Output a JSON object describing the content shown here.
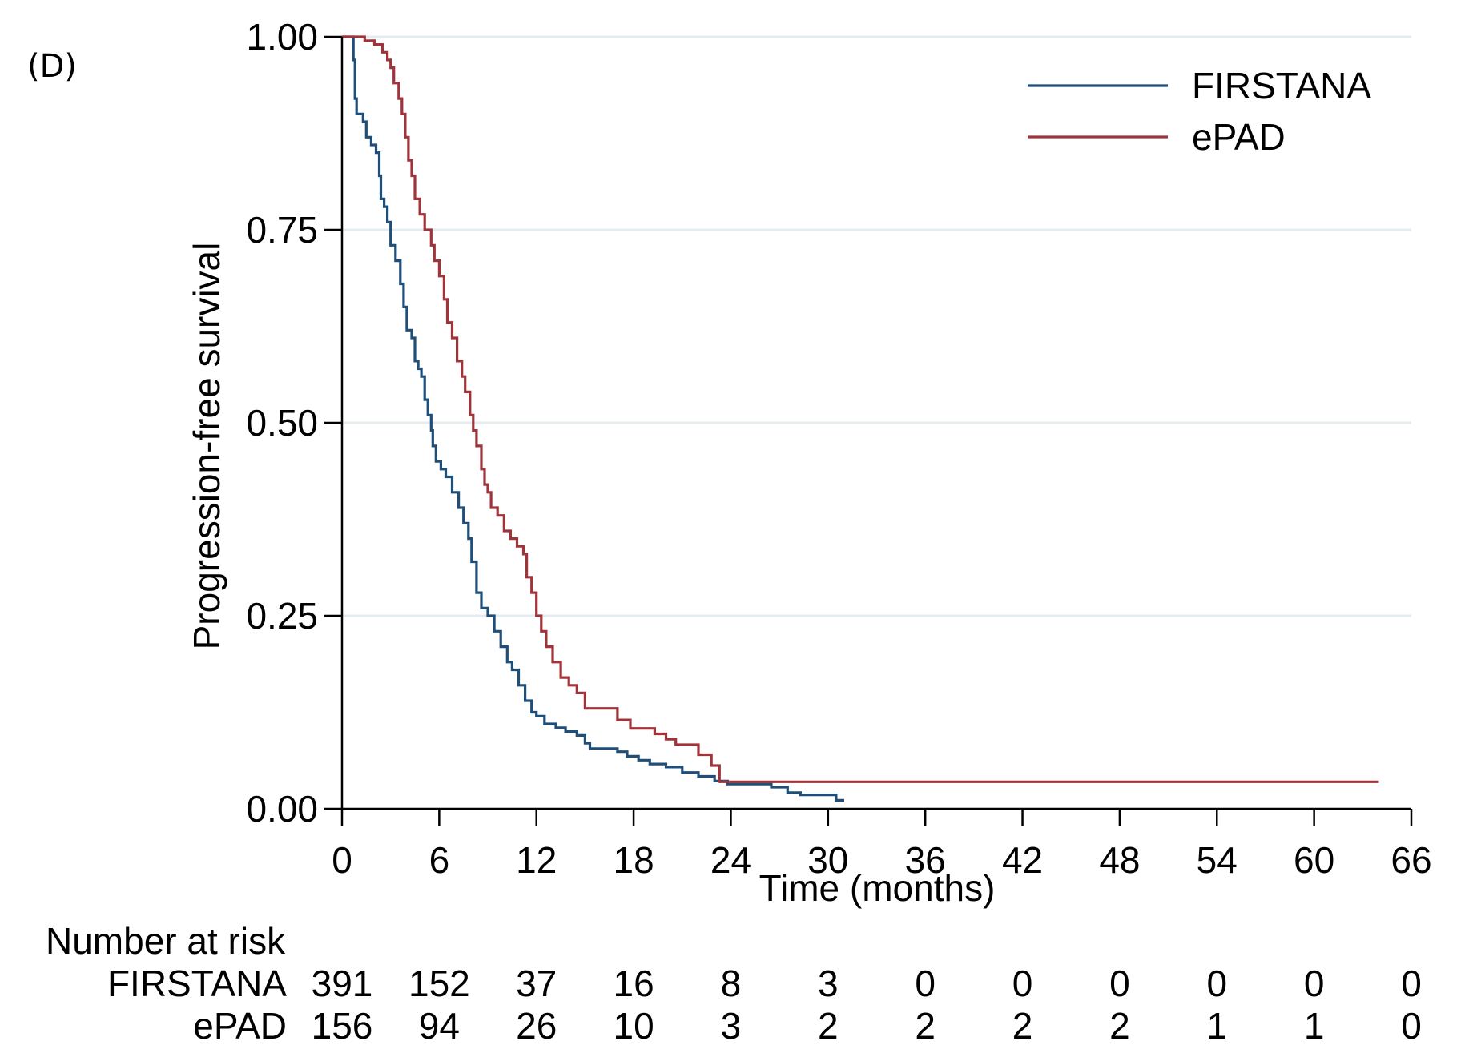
{
  "panel_label": "(D)",
  "chart_data": {
    "type": "line",
    "xlabel": "Time (months)",
    "ylabel": "Progression-free survival",
    "xlim": [
      0,
      66
    ],
    "ylim": [
      0,
      1
    ],
    "xticks": [
      0,
      6,
      12,
      18,
      24,
      30,
      36,
      42,
      48,
      54,
      60,
      66
    ],
    "yticks": [
      0.0,
      0.25,
      0.5,
      0.75,
      1.0
    ],
    "ytick_labels": [
      "0.00",
      "0.25",
      "0.50",
      "0.75",
      "1.00"
    ],
    "grid": "horizontal",
    "legend_position": "top-right",
    "series": [
      {
        "name": "FIRSTANA",
        "color": "#1f4e79",
        "step_points": [
          [
            0,
            1.0
          ],
          [
            0.6,
            1.0
          ],
          [
            0.7,
            0.97
          ],
          [
            0.8,
            0.92
          ],
          [
            0.9,
            0.9
          ],
          [
            1.3,
            0.89
          ],
          [
            1.5,
            0.87
          ],
          [
            1.8,
            0.86
          ],
          [
            2.1,
            0.85
          ],
          [
            2.3,
            0.82
          ],
          [
            2.4,
            0.79
          ],
          [
            2.6,
            0.78
          ],
          [
            2.8,
            0.76
          ],
          [
            3.0,
            0.73
          ],
          [
            3.3,
            0.71
          ],
          [
            3.6,
            0.68
          ],
          [
            3.8,
            0.65
          ],
          [
            4.0,
            0.62
          ],
          [
            4.3,
            0.61
          ],
          [
            4.5,
            0.58
          ],
          [
            4.7,
            0.57
          ],
          [
            4.9,
            0.56
          ],
          [
            5.1,
            0.53
          ],
          [
            5.3,
            0.51
          ],
          [
            5.5,
            0.49
          ],
          [
            5.6,
            0.47
          ],
          [
            5.8,
            0.45
          ],
          [
            6.1,
            0.44
          ],
          [
            6.4,
            0.43
          ],
          [
            6.8,
            0.41
          ],
          [
            7.2,
            0.39
          ],
          [
            7.5,
            0.37
          ],
          [
            7.8,
            0.35
          ],
          [
            8.0,
            0.32
          ],
          [
            8.3,
            0.28
          ],
          [
            8.6,
            0.26
          ],
          [
            9.0,
            0.25
          ],
          [
            9.4,
            0.23
          ],
          [
            9.8,
            0.21
          ],
          [
            10.2,
            0.19
          ],
          [
            10.5,
            0.18
          ],
          [
            10.9,
            0.16
          ],
          [
            11.3,
            0.14
          ],
          [
            11.7,
            0.125
          ],
          [
            12.0,
            0.12
          ],
          [
            12.5,
            0.11
          ],
          [
            13.2,
            0.105
          ],
          [
            13.8,
            0.1
          ],
          [
            14.5,
            0.095
          ],
          [
            15.0,
            0.085
          ],
          [
            15.3,
            0.078
          ],
          [
            17.0,
            0.074
          ],
          [
            17.6,
            0.068
          ],
          [
            18.3,
            0.063
          ],
          [
            19.0,
            0.058
          ],
          [
            20.0,
            0.054
          ],
          [
            21.0,
            0.047
          ],
          [
            22.0,
            0.042
          ],
          [
            23.0,
            0.036
          ],
          [
            23.8,
            0.032
          ],
          [
            26.5,
            0.028
          ],
          [
            27.5,
            0.021
          ],
          [
            28.3,
            0.018
          ],
          [
            30.5,
            0.011
          ],
          [
            31.0,
            0.011
          ]
        ]
      },
      {
        "name": "ePAD",
        "color": "#a0343b",
        "step_points": [
          [
            0,
            1.0
          ],
          [
            1.1,
            1.0
          ],
          [
            1.4,
            0.995
          ],
          [
            2.0,
            0.99
          ],
          [
            2.5,
            0.98
          ],
          [
            2.8,
            0.97
          ],
          [
            3.0,
            0.96
          ],
          [
            3.2,
            0.94
          ],
          [
            3.5,
            0.92
          ],
          [
            3.7,
            0.9
          ],
          [
            3.9,
            0.87
          ],
          [
            4.1,
            0.84
          ],
          [
            4.3,
            0.82
          ],
          [
            4.5,
            0.79
          ],
          [
            4.8,
            0.77
          ],
          [
            5.1,
            0.75
          ],
          [
            5.5,
            0.73
          ],
          [
            5.7,
            0.71
          ],
          [
            6.0,
            0.69
          ],
          [
            6.3,
            0.66
          ],
          [
            6.5,
            0.63
          ],
          [
            6.8,
            0.61
          ],
          [
            7.1,
            0.58
          ],
          [
            7.4,
            0.56
          ],
          [
            7.6,
            0.54
          ],
          [
            7.9,
            0.51
          ],
          [
            8.1,
            0.49
          ],
          [
            8.3,
            0.47
          ],
          [
            8.6,
            0.44
          ],
          [
            8.8,
            0.42
          ],
          [
            9.0,
            0.41
          ],
          [
            9.2,
            0.39
          ],
          [
            9.6,
            0.38
          ],
          [
            10.0,
            0.36
          ],
          [
            10.4,
            0.35
          ],
          [
            10.8,
            0.34
          ],
          [
            11.2,
            0.33
          ],
          [
            11.4,
            0.3
          ],
          [
            11.7,
            0.28
          ],
          [
            12.0,
            0.25
          ],
          [
            12.3,
            0.23
          ],
          [
            12.6,
            0.21
          ],
          [
            13.0,
            0.19
          ],
          [
            13.5,
            0.17
          ],
          [
            14.0,
            0.16
          ],
          [
            14.5,
            0.15
          ],
          [
            15.0,
            0.13
          ],
          [
            16.6,
            0.13
          ],
          [
            17.0,
            0.115
          ],
          [
            17.8,
            0.104
          ],
          [
            19.3,
            0.097
          ],
          [
            20.0,
            0.09
          ],
          [
            20.6,
            0.083
          ],
          [
            22.0,
            0.07
          ],
          [
            22.8,
            0.056
          ],
          [
            23.3,
            0.035
          ],
          [
            64.0,
            0.035
          ]
        ]
      }
    ],
    "risk_table": {
      "title": "Number at risk",
      "times": [
        0,
        6,
        12,
        18,
        24,
        30,
        36,
        42,
        48,
        54,
        60,
        66
      ],
      "rows": [
        {
          "name": "FIRSTANA",
          "values": [
            "391",
            "152",
            "37",
            "16",
            "8",
            "3",
            "0",
            "0",
            "0",
            "0",
            "0",
            "0"
          ]
        },
        {
          "name": "ePAD",
          "values": [
            "156",
            "94",
            "26",
            "10",
            "3",
            "2",
            "2",
            "2",
            "2",
            "1",
            "1",
            "0"
          ]
        }
      ]
    }
  }
}
